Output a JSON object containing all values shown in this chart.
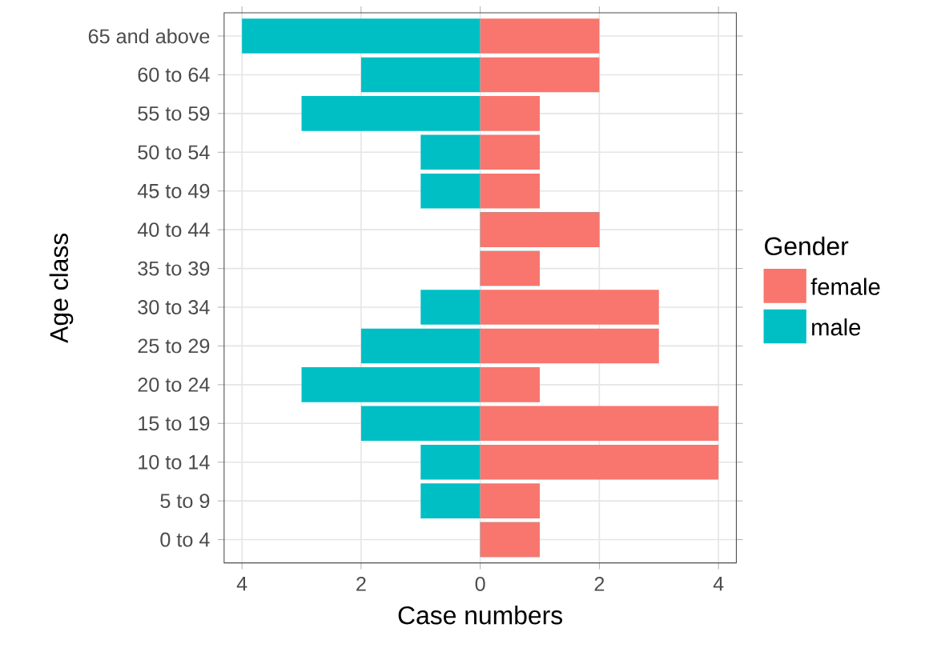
{
  "chart_data": {
    "type": "bar",
    "orientation": "horizontal",
    "xlabel": "Case numbers",
    "ylabel": "Age class",
    "legend_title": "Gender",
    "categories": [
      "65 and above",
      "60 to 64",
      "55 to 59",
      "50 to 54",
      "45 to 49",
      "40 to 44",
      "35 to 39",
      "30 to 34",
      "25 to 29",
      "20 to 24",
      "15 to 19",
      "10 to 14",
      "5 to 9",
      "0 to 4"
    ],
    "series": [
      {
        "name": "female",
        "color": "#f8766d",
        "values": [
          2,
          2,
          1,
          1,
          1,
          2,
          1,
          3,
          3,
          1,
          4,
          4,
          1,
          1
        ]
      },
      {
        "name": "male",
        "color": "#00bfc4",
        "values": [
          -4,
          -2,
          -3,
          -1,
          -1,
          0,
          0,
          -1,
          -2,
          -3,
          -2,
          -1,
          -1,
          0
        ]
      }
    ],
    "xlim": [
      -4.3,
      4.3
    ],
    "xticks": [
      {
        "value": -4,
        "label": "4"
      },
      {
        "value": -2,
        "label": "2"
      },
      0,
      2,
      4
    ],
    "grid": true,
    "legend": "right",
    "stacked": true
  }
}
